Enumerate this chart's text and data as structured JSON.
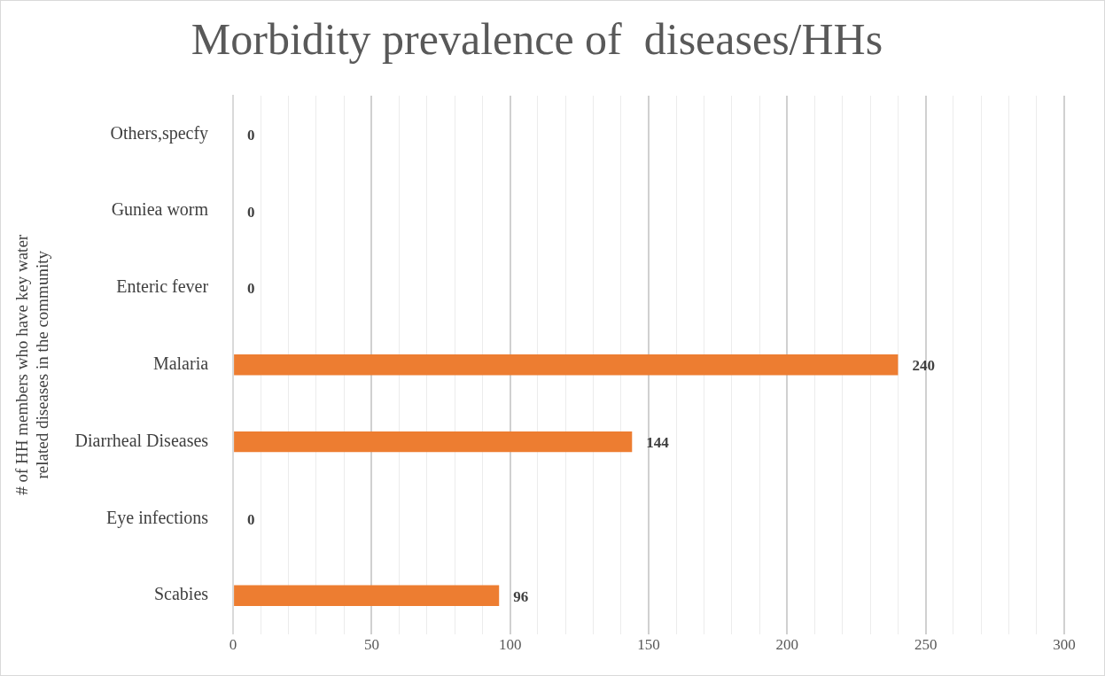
{
  "chart_data": {
    "type": "bar",
    "orientation": "horizontal",
    "title": "Morbidity prevalence of  diseases/HHs",
    "ylabel": "# of HH members who have key water related diseases in the community",
    "categories": [
      "Others,specfy",
      "Guniea worm",
      "Enteric fever",
      "Malaria",
      "Diarrheal Diseases",
      "Eye infections",
      "Scabies"
    ],
    "values": [
      0,
      0,
      0,
      240,
      144,
      0,
      96
    ],
    "color": "#ed7d31",
    "data_labels": true,
    "xlim": [
      0,
      300
    ],
    "xticks": [
      0,
      {
        "value": 10,
        "label": null
      },
      {
        "value": 20,
        "label": null
      },
      {
        "value": 30,
        "label": null
      },
      {
        "value": 40,
        "label": null
      },
      50,
      {
        "value": 60,
        "label": null
      },
      {
        "value": 70,
        "label": null
      },
      {
        "value": 80,
        "label": null
      },
      {
        "value": 90,
        "label": null
      },
      100,
      {
        "value": 110,
        "label": null
      },
      {
        "value": 120,
        "label": null
      },
      {
        "value": 130,
        "label": null
      },
      {
        "value": 140,
        "label": null
      },
      150,
      {
        "value": 160,
        "label": null
      },
      {
        "value": 170,
        "label": null
      },
      {
        "value": 180,
        "label": null
      },
      {
        "value": 190,
        "label": null
      },
      200,
      {
        "value": 210,
        "label": null
      },
      {
        "value": 220,
        "label": null
      },
      {
        "value": 230,
        "label": null
      },
      {
        "value": 240,
        "label": null
      },
      250,
      {
        "value": 260,
        "label": null
      },
      {
        "value": 270,
        "label": null
      },
      {
        "value": 280,
        "label": null
      },
      {
        "value": 290,
        "label": null
      },
      300
    ],
    "grid": "x",
    "legend": false
  }
}
